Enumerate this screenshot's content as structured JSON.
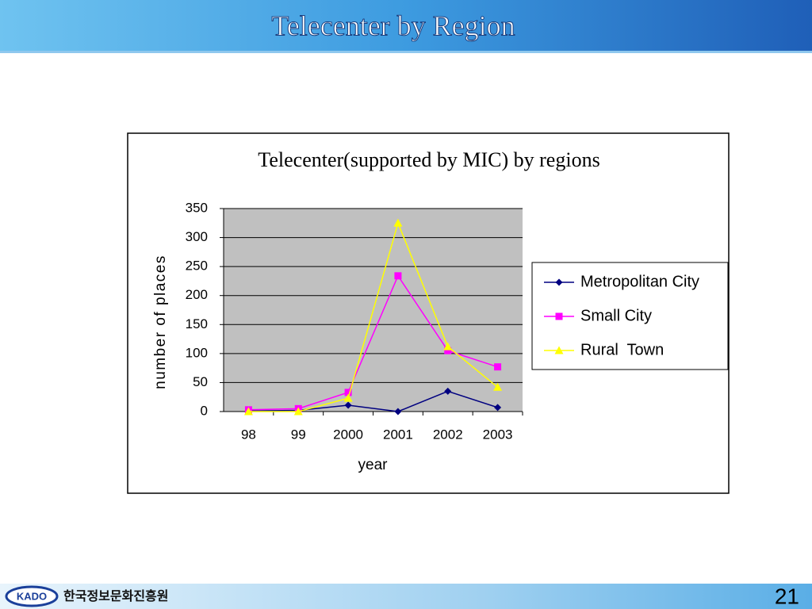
{
  "slide": {
    "title": "Telecenter by Region",
    "logo": "KADO",
    "org": "한국정보문화진흥원",
    "page_number": "21"
  },
  "chart_data": {
    "type": "line",
    "title": "Telecenter(supported by MIC) by regions",
    "x_label": "year",
    "y_label": "number of places",
    "categories": [
      "98",
      "99",
      "2000",
      "2001",
      "2002",
      "2003"
    ],
    "series": [
      {
        "name": "Metropolitan City",
        "color": "#000080",
        "marker": "diamond",
        "values": [
          1,
          2,
          11,
          0,
          35,
          7
        ]
      },
      {
        "name": "Small City",
        "color": "#ff00ff",
        "marker": "square",
        "values": [
          3,
          5,
          33,
          234,
          105,
          77
        ]
      },
      {
        "name": "Rural  Town",
        "color": "#ffff00",
        "marker": "triangle",
        "values": [
          0,
          0,
          23,
          325,
          112,
          42
        ]
      }
    ],
    "ylim": [
      0,
      350
    ],
    "yticks": [
      0,
      50,
      100,
      150,
      200,
      250,
      300,
      350
    ],
    "grid": true,
    "legend": "right"
  }
}
